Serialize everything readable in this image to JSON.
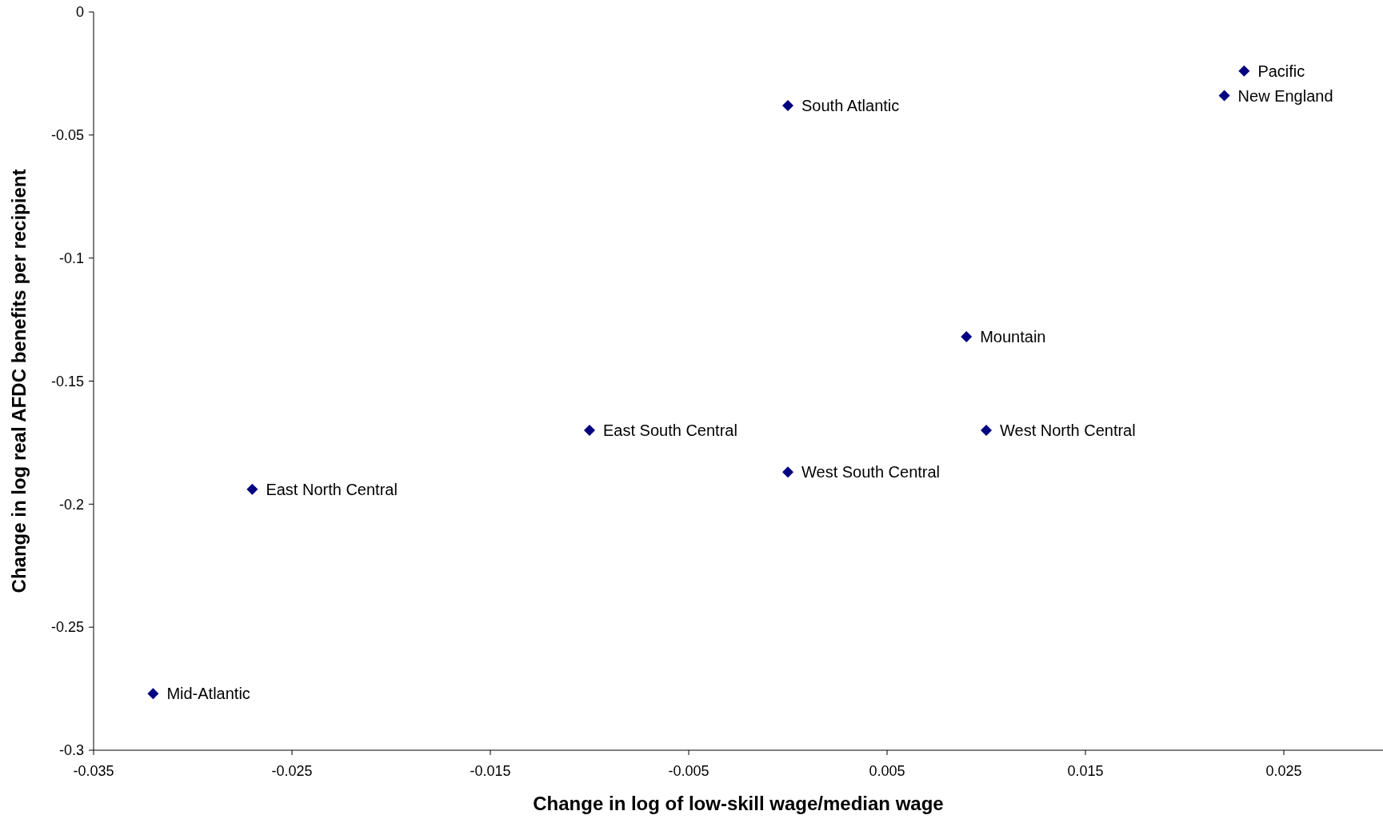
{
  "chart_data": {
    "type": "scatter",
    "xlabel": "Change in log of low-skill wage/median wage",
    "ylabel": "Change in log real AFDC benefits per recipient",
    "x": [
      0.023,
      0.022,
      0.0,
      0.009,
      -0.01,
      0.01,
      0.0,
      -0.027,
      -0.032
    ],
    "series": [
      {
        "color": "#000080",
        "values": [
          -0.024,
          -0.034,
          -0.038,
          -0.132,
          -0.17,
          -0.17,
          -0.187,
          -0.194,
          -0.277
        ]
      }
    ],
    "annotations": [
      {
        "text": "Pacific",
        "x": 0.023,
        "y": -0.024
      },
      {
        "text": "New England",
        "x": 0.022,
        "y": -0.034
      },
      {
        "text": "South Atlantic",
        "x": 0.0,
        "y": -0.038
      },
      {
        "text": "Mountain",
        "x": 0.009,
        "y": -0.132
      },
      {
        "text": "East South Central",
        "x": -0.01,
        "y": -0.17
      },
      {
        "text": "West North Central",
        "x": 0.01,
        "y": -0.17
      },
      {
        "text": "West South Central",
        "x": 0.0,
        "y": -0.187
      },
      {
        "text": "East North Central",
        "x": -0.027,
        "y": -0.194
      },
      {
        "text": "Mid-Atlantic",
        "x": -0.032,
        "y": -0.277
      }
    ],
    "xlim": [
      -0.035,
      0.03
    ],
    "xticks": [
      -0.035,
      -0.025,
      -0.015,
      -0.005,
      0.005,
      0.015,
      0.025
    ],
    "ylim": [
      -0.3,
      0
    ],
    "yticks": [
      -0.3,
      -0.25,
      -0.2,
      -0.15,
      -0.1,
      -0.05,
      0
    ],
    "marker": "diamond"
  }
}
